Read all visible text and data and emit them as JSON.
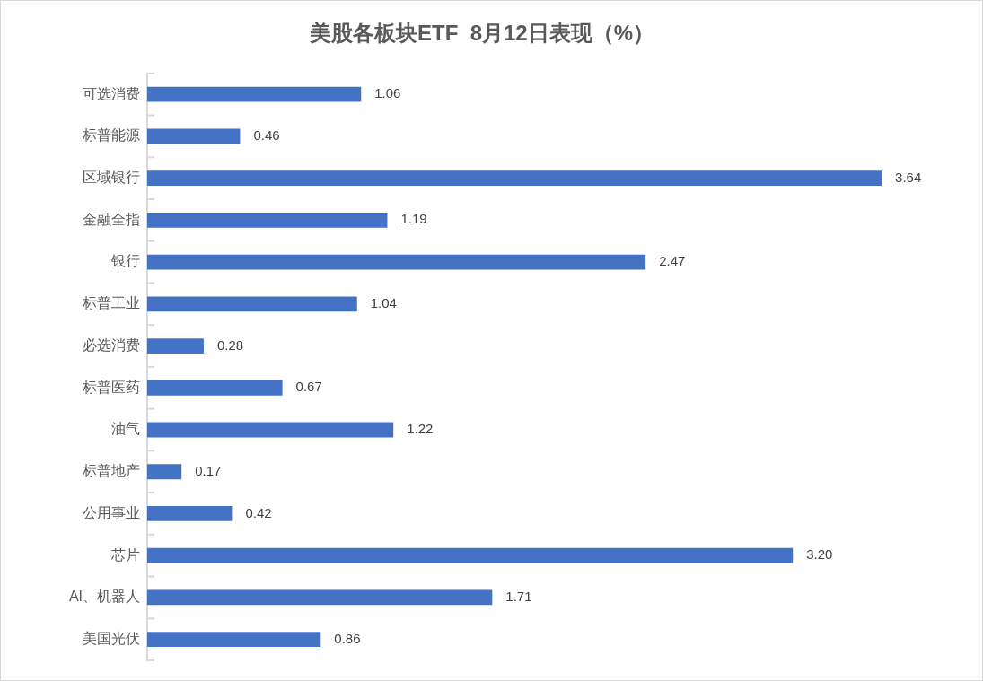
{
  "chart_data": {
    "type": "bar",
    "orientation": "horizontal",
    "title": "美股各板块ETF  8月12日表现（%）",
    "categories": [
      "可选消费",
      "标普能源",
      "区域银行",
      "金融全指",
      "银行",
      "标普工业",
      "必选消费",
      "标普医药",
      "油气",
      "标普地产",
      "公用事业",
      "芯片",
      "AI、机器人",
      "美国光伏"
    ],
    "values": [
      1.06,
      0.46,
      3.64,
      1.19,
      2.47,
      1.04,
      0.28,
      0.67,
      1.22,
      0.17,
      0.42,
      3.2,
      1.71,
      0.86
    ],
    "value_labels": [
      "1.06",
      "0.46",
      "3.64",
      "1.19",
      "2.47",
      "1.04",
      "0.28",
      "0.67",
      "1.22",
      "0.17",
      "0.42",
      "3.20",
      "1.71",
      "0.86"
    ],
    "color": "#4472c4"
  }
}
